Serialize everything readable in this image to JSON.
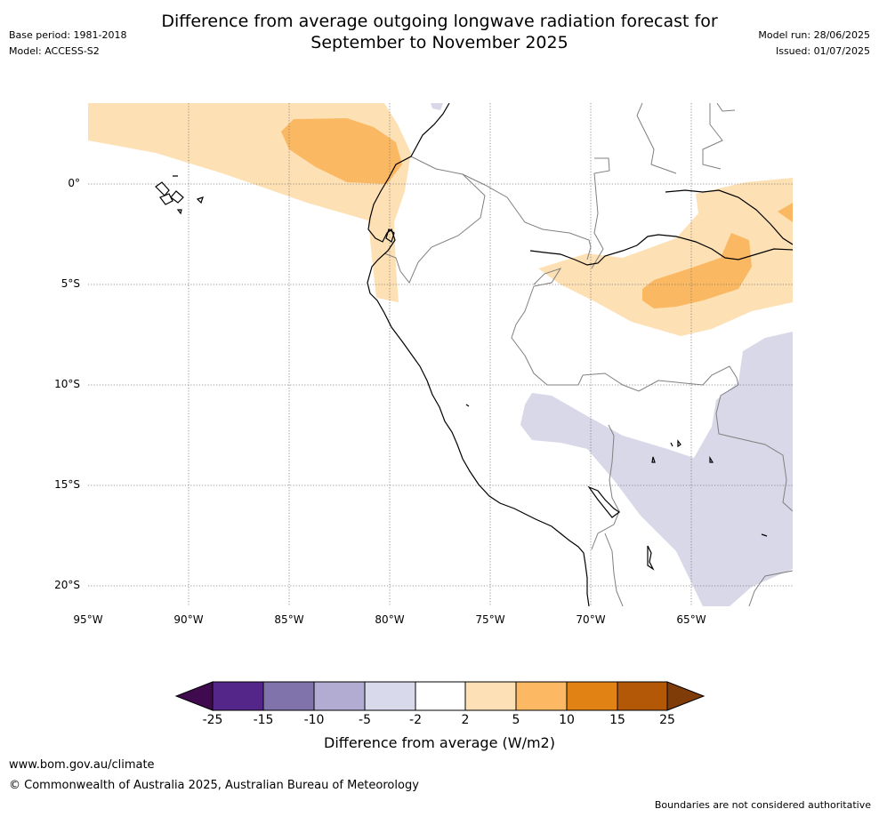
{
  "title": "Difference from average outgoing longwave radiation forecast for",
  "title_line2": "September to November 2025",
  "meta": {
    "base_period": "Base period: 1981-2018",
    "model": "Model: ACCESS-S2",
    "model_run": "Model run: 28/06/2025",
    "issued": "Issued: 01/07/2025"
  },
  "map": {
    "lat_labels": [
      "0°",
      "5°S",
      "10°S",
      "15°S",
      "20°S"
    ],
    "lon_labels": [
      "95°W",
      "90°W",
      "85°W",
      "80°W",
      "75°W",
      "70°W",
      "65°W"
    ],
    "colors": {
      "light_orange": "#fde0b4",
      "mid_orange": "#fbb862",
      "light_purple": "#d8d8e8",
      "coast": "#000000",
      "borders": "#808080"
    }
  },
  "colorbar": {
    "title": "Difference from average (W/m2)",
    "ticks": [
      "-25",
      "-15",
      "-10",
      "-5",
      "-2",
      "2",
      "5",
      "10",
      "15",
      "25"
    ],
    "colors": [
      "#3f0a4e",
      "#542689",
      "#8073ac",
      "#b2abd2",
      "#d8daeb",
      "#ffffff",
      "#fee0b6",
      "#fdb863",
      "#e08214",
      "#b35806",
      "#7f3b08"
    ]
  },
  "footer": {
    "url": "www.bom.gov.au/climate",
    "copyright": "© Commonwealth of Australia 2025, Australian Bureau of Meteorology",
    "disclaimer": "Boundaries are not considered authoritative"
  }
}
